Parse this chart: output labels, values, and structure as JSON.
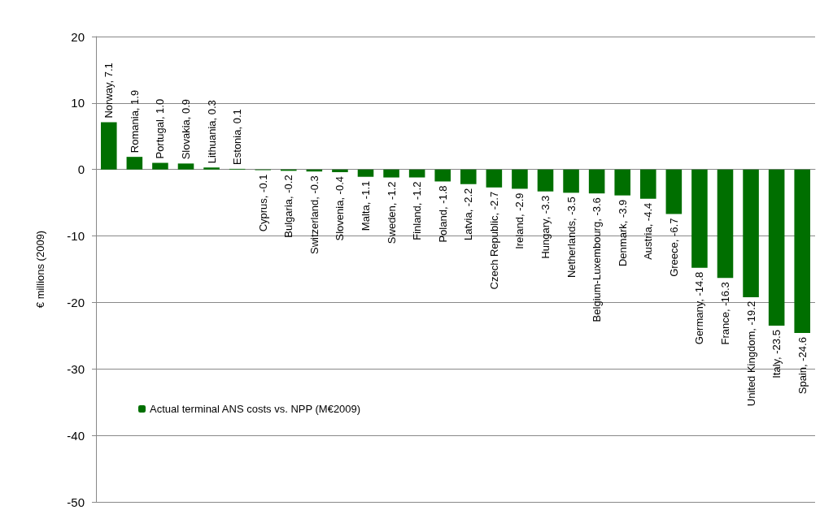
{
  "chart_data": {
    "type": "bar",
    "ylabel": "€ millions (2009)",
    "categories": [
      null,
      null,
      null,
      null,
      null,
      null,
      null,
      null,
      null,
      null,
      null,
      null,
      null,
      null,
      null,
      null,
      null,
      null,
      null,
      null,
      null,
      null,
      null,
      null,
      null,
      null,
      null,
      null
    ],
    "series": [
      {
        "name": "Actual terminal ANS costs vs. NPP (M€2009)",
        "color": "#006f00",
        "values": [
          7.1,
          1.9,
          1.0,
          0.9,
          0.3,
          0.1,
          -0.1,
          -0.2,
          -0.3,
          -0.4,
          -1.1,
          -1.2,
          -1.2,
          -1.8,
          -2.2,
          -2.7,
          -2.9,
          -3.3,
          -3.5,
          -3.6,
          -3.9,
          -4.4,
          -6.7,
          -14.8,
          -16.3,
          -19.2,
          -23.5,
          -24.6
        ],
        "value_labels": [
          "Norway, 7.1",
          "Romania, 1.9",
          "Portugal, 1.0",
          "Slovakia, 0.9",
          "Lithuania, 0.3",
          "Estonia, 0.1",
          "Cyprus, -0.1",
          "Bulgaria, -0.2",
          "Switzerland, -0.3",
          "Slovenia, -0.4",
          "Malta, -1.1",
          "Sweden, -1.2",
          "Finland, -1.2",
          "Poland, -1.8",
          "Latvia, -2.2",
          "Czech Republic, -2.7",
          "Ireland, -2.9",
          "Hungary, -3.3",
          "Netherlands, -3.5",
          "Belgium-Luxembourg, -3.6",
          "Denmark, -3.9",
          "Austria, -4.4",
          "Greece, -6.7",
          "Germany, -14.8",
          "France, -16.3",
          "United Kingdom, -19.2",
          "Italy, -23.5",
          "Spain, -24.6"
        ]
      }
    ],
    "ylim": [
      -50,
      20
    ],
    "yticks": [
      -50,
      -40,
      -30,
      -20,
      -10,
      0,
      10,
      20
    ],
    "grid": "y",
    "legend": "bottom left",
    "tick_labels": "y"
  }
}
